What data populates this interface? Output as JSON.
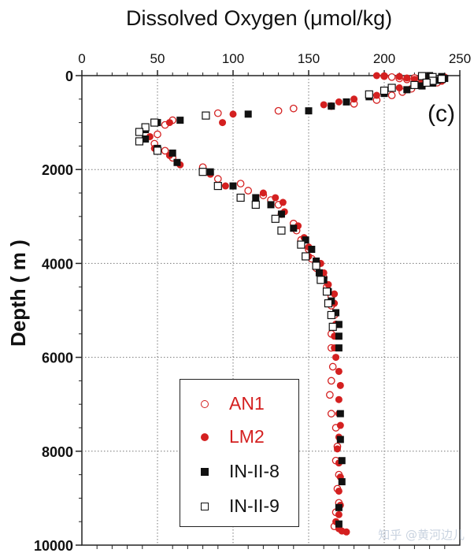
{
  "title": "Dissolved Oxygen (μmol/kg)",
  "panel_label": "(c)",
  "watermark": "知乎 @黄河边儿",
  "chart_data": {
    "type": "scatter",
    "title": "Dissolved Oxygen (μmol/kg)",
    "xlabel": "Dissolved Oxygen (μmol/kg)",
    "ylabel": "Depth ( m )",
    "xlim": [
      0,
      250
    ],
    "ylim": [
      10000,
      0
    ],
    "x_axis_position": "top",
    "xticks": [
      0,
      50,
      100,
      150,
      200,
      250
    ],
    "yticks": [
      0,
      2000,
      4000,
      6000,
      8000,
      10000
    ],
    "grid": true,
    "legend_position": "bottom-left",
    "series": [
      {
        "name": "AN1",
        "marker": "open-circle",
        "color": "#d42020",
        "points": [
          [
            200,
            10
          ],
          [
            205,
            30
          ],
          [
            210,
            60
          ],
          [
            215,
            80
          ],
          [
            220,
            50
          ],
          [
            225,
            120
          ],
          [
            230,
            40
          ],
          [
            235,
            150
          ],
          [
            222,
            200
          ],
          [
            218,
            280
          ],
          [
            212,
            350
          ],
          [
            205,
            420
          ],
          [
            195,
            520
          ],
          [
            180,
            600
          ],
          [
            165,
            650
          ],
          [
            140,
            700
          ],
          [
            130,
            750
          ],
          [
            90,
            800
          ],
          [
            60,
            950
          ],
          [
            55,
            1050
          ],
          [
            50,
            1250
          ],
          [
            48,
            1450
          ],
          [
            55,
            1600
          ],
          [
            60,
            1750
          ],
          [
            80,
            1950
          ],
          [
            90,
            2200
          ],
          [
            105,
            2300
          ],
          [
            110,
            2450
          ],
          [
            120,
            2550
          ],
          [
            125,
            2650
          ],
          [
            130,
            2750
          ],
          [
            132,
            2950
          ],
          [
            140,
            3150
          ],
          [
            142,
            3300
          ],
          [
            145,
            3500
          ],
          [
            150,
            3700
          ],
          [
            152,
            3900
          ],
          [
            155,
            4100
          ],
          [
            160,
            4300
          ],
          [
            162,
            4500
          ],
          [
            165,
            4700
          ],
          [
            165,
            4900
          ],
          [
            167,
            5100
          ],
          [
            168,
            5300
          ],
          [
            165,
            5500
          ],
          [
            165,
            5800
          ],
          [
            166,
            6200
          ],
          [
            165,
            6500
          ],
          [
            164,
            6800
          ],
          [
            165,
            7200
          ],
          [
            168,
            7500
          ],
          [
            169,
            7900
          ],
          [
            168,
            8200
          ],
          [
            170,
            8500
          ],
          [
            169,
            8800
          ],
          [
            170,
            9100
          ],
          [
            168,
            9300
          ],
          [
            167,
            9600
          ]
        ]
      },
      {
        "name": "LM2",
        "marker": "filled-circle",
        "color": "#d42020",
        "points": [
          [
            195,
            0
          ],
          [
            200,
            15
          ],
          [
            210,
            20
          ],
          [
            215,
            50
          ],
          [
            220,
            80
          ],
          [
            225,
            100
          ],
          [
            230,
            60
          ],
          [
            238,
            120
          ],
          [
            240,
            30
          ],
          [
            220,
            180
          ],
          [
            210,
            260
          ],
          [
            200,
            340
          ],
          [
            195,
            420
          ],
          [
            180,
            500
          ],
          [
            170,
            560
          ],
          [
            160,
            620
          ],
          [
            100,
            820
          ],
          [
            93,
            1000
          ],
          [
            58,
            1000
          ],
          [
            45,
            1300
          ],
          [
            48,
            1550
          ],
          [
            58,
            1700
          ],
          [
            65,
            1900
          ],
          [
            85,
            2100
          ],
          [
            95,
            2350
          ],
          [
            120,
            2500
          ],
          [
            128,
            2600
          ],
          [
            133,
            2700
          ],
          [
            134,
            2900
          ],
          [
            143,
            3200
          ],
          [
            147,
            3450
          ],
          [
            150,
            3650
          ],
          [
            150,
            3850
          ],
          [
            158,
            4000
          ],
          [
            160,
            4200
          ],
          [
            163,
            4450
          ],
          [
            167,
            4650
          ],
          [
            167,
            4850
          ],
          [
            168,
            5050
          ],
          [
            168,
            5300
          ],
          [
            167,
            5550
          ],
          [
            167,
            5800
          ],
          [
            168,
            6000
          ],
          [
            170,
            6300
          ],
          [
            171,
            6600
          ],
          [
            170,
            6900
          ],
          [
            170,
            7200
          ],
          [
            171,
            7450
          ],
          [
            170,
            7700
          ],
          [
            169,
            7950
          ],
          [
            170,
            8250
          ],
          [
            171,
            8550
          ],
          [
            170,
            8850
          ],
          [
            171,
            9150
          ],
          [
            170,
            9350
          ],
          [
            168,
            9500
          ],
          [
            170,
            9650
          ],
          [
            172,
            9700
          ],
          [
            175,
            9720
          ]
        ]
      },
      {
        "name": "IN-II-8",
        "marker": "filled-square",
        "color": "#111111",
        "points": [
          [
            230,
            0
          ],
          [
            238,
            20
          ],
          [
            240,
            60
          ],
          [
            235,
            100
          ],
          [
            232,
            160
          ],
          [
            225,
            220
          ],
          [
            215,
            300
          ],
          [
            200,
            380
          ],
          [
            190,
            450
          ],
          [
            175,
            560
          ],
          [
            165,
            650
          ],
          [
            150,
            750
          ],
          [
            110,
            820
          ],
          [
            65,
            950
          ],
          [
            50,
            1000
          ],
          [
            42,
            1150
          ],
          [
            42,
            1350
          ],
          [
            50,
            1550
          ],
          [
            60,
            1650
          ],
          [
            63,
            1850
          ],
          [
            85,
            2050
          ],
          [
            100,
            2350
          ],
          [
            115,
            2600
          ],
          [
            125,
            2750
          ],
          [
            132,
            2950
          ],
          [
            140,
            3250
          ],
          [
            148,
            3500
          ],
          [
            152,
            3700
          ],
          [
            155,
            3950
          ],
          [
            157,
            4200
          ],
          [
            160,
            4350
          ],
          [
            163,
            4600
          ],
          [
            165,
            4800
          ],
          [
            168,
            5050
          ],
          [
            170,
            5300
          ],
          [
            170,
            5550
          ],
          [
            170,
            5800
          ],
          [
            171,
            7200
          ],
          [
            171,
            7750
          ],
          [
            172,
            8200
          ],
          [
            172,
            8650
          ],
          [
            170,
            9200
          ],
          [
            170,
            9550
          ]
        ]
      },
      {
        "name": "IN-II-9",
        "marker": "open-square",
        "color": "#111111",
        "points": [
          [
            225,
            10
          ],
          [
            232,
            30
          ],
          [
            238,
            70
          ],
          [
            232,
            110
          ],
          [
            228,
            150
          ],
          [
            220,
            200
          ],
          [
            205,
            260
          ],
          [
            200,
            320
          ],
          [
            190,
            400
          ],
          [
            82,
            850
          ],
          [
            48,
            1000
          ],
          [
            42,
            1100
          ],
          [
            38,
            1200
          ],
          [
            38,
            1400
          ],
          [
            50,
            1600
          ],
          [
            80,
            2050
          ],
          [
            90,
            2350
          ],
          [
            105,
            2600
          ],
          [
            115,
            2750
          ],
          [
            128,
            3050
          ],
          [
            132,
            3300
          ],
          [
            145,
            3600
          ],
          [
            148,
            3850
          ],
          [
            155,
            4050
          ],
          [
            158,
            4350
          ],
          [
            162,
            4600
          ],
          [
            163,
            4850
          ],
          [
            165,
            5100
          ],
          [
            166,
            5350
          ]
        ]
      }
    ]
  }
}
